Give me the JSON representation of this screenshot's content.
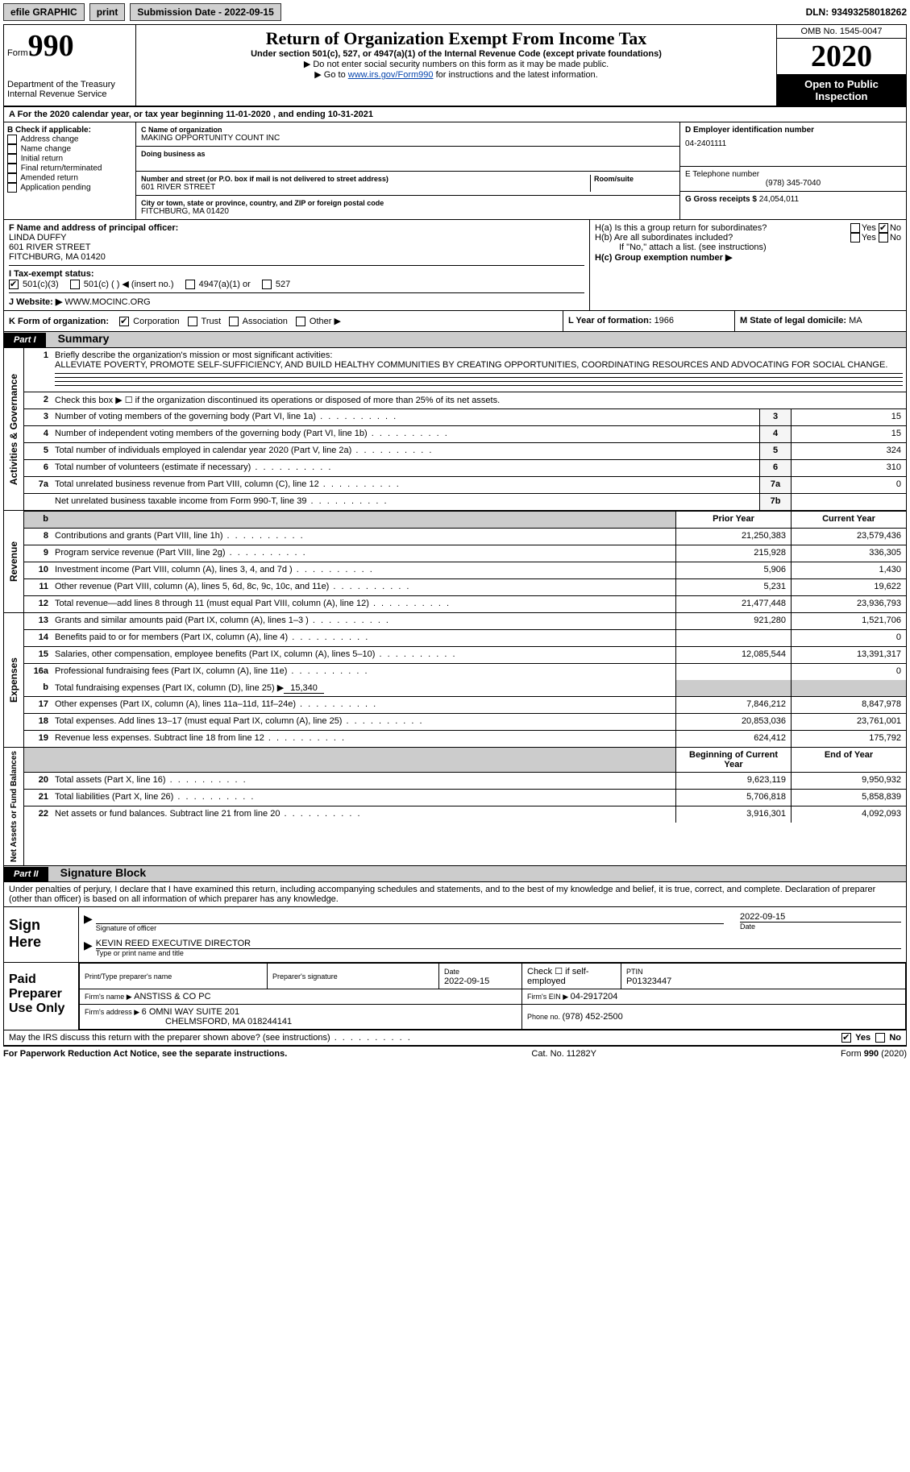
{
  "topbar": {
    "efile": "efile GRAPHIC",
    "print": "print",
    "submission_label": "Submission Date - ",
    "submission_date": "2022-09-15",
    "dln_label": "DLN: ",
    "dln": "93493258018262"
  },
  "header": {
    "form_word": "Form",
    "form_num": "990",
    "dept1": "Department of the Treasury",
    "dept2": "Internal Revenue Service",
    "title": "Return of Organization Exempt From Income Tax",
    "subtitle": "Under section 501(c), 527, or 4947(a)(1) of the Internal Revenue Code (except private foundations)",
    "note1": "▶ Do not enter social security numbers on this form as it may be made public.",
    "note2a": "▶ Go to ",
    "note2_link": "www.irs.gov/Form990",
    "note2b": " for instructions and the latest information.",
    "omb": "OMB No. 1545-0047",
    "year": "2020",
    "open_public": "Open to Public Inspection"
  },
  "line_a": {
    "prefix": "A For the 2020 calendar year, or tax year beginning ",
    "begin": "11-01-2020",
    "mid": "   , and ending ",
    "end": "10-31-2021"
  },
  "block_b": {
    "title": "B Check if applicable:",
    "items": [
      "Address change",
      "Name change",
      "Initial return",
      "Final return/terminated",
      "Amended return",
      "Application pending"
    ]
  },
  "block_c": {
    "name_label": "C Name of organization",
    "name": "MAKING OPPORTUNITY COUNT INC",
    "dba_label": "Doing business as",
    "addr_label": "Number and street (or P.O. box if mail is not delivered to street address)",
    "room_label": "Room/suite",
    "addr": "601 RIVER STREET",
    "city_label": "City or town, state or province, country, and ZIP or foreign postal code",
    "city": "FITCHBURG, MA  01420"
  },
  "block_d": {
    "label": "D Employer identification number",
    "value": "04-2401111"
  },
  "block_e": {
    "label": "E Telephone number",
    "value": "(978) 345-7040"
  },
  "block_g": {
    "label": "G Gross receipts $ ",
    "value": "24,054,011"
  },
  "block_f": {
    "label": "F  Name and address of principal officer:",
    "name": "LINDA DUFFY",
    "addr": "601 RIVER STREET",
    "city": "FITCHBURG, MA  01420"
  },
  "block_h": {
    "a_label": "H(a)  Is this a group return for subordinates?",
    "yes": "Yes",
    "no": "No",
    "b_label": "H(b)  Are all subordinates included?",
    "b_note": "If \"No,\" attach a list. (see instructions)",
    "c_label": "H(c)  Group exemption number ▶"
  },
  "line_i": {
    "label": "I  Tax-exempt status:",
    "opts": [
      "501(c)(3)",
      "501(c) (  ) ◀ (insert no.)",
      "4947(a)(1) or",
      "527"
    ]
  },
  "line_j": {
    "label": "J  Website: ▶",
    "value": "WWW.MOCINC.ORG"
  },
  "line_k": {
    "label": "K Form of organization:",
    "opts": [
      "Corporation",
      "Trust",
      "Association",
      "Other ▶"
    ]
  },
  "line_l": {
    "label": "L Year of formation: ",
    "value": "1966"
  },
  "line_m": {
    "label": "M State of legal domicile: ",
    "value": "MA"
  },
  "part1": {
    "label": "Part I",
    "title": "Summary",
    "q1": "Briefly describe the organization's mission or most significant activities:",
    "mission": "ALLEVIATE POVERTY, PROMOTE SELF-SUFFICIENCY, AND BUILD HEALTHY COMMUNITIES BY CREATING OPPORTUNITIES, COORDINATING RESOURCES AND ADVOCATING FOR SOCIAL CHANGE.",
    "q2": "Check this box ▶ ☐  if the organization discontinued its operations or disposed of more than 25% of its net assets.",
    "governance_label": "Activities & Governance",
    "revenue_label": "Revenue",
    "expenses_label": "Expenses",
    "netassets_label": "Net Assets or Fund Balances",
    "lines_gov": [
      {
        "n": "3",
        "t": "Number of voting members of the governing body (Part VI, line 1a)",
        "i": "3",
        "v": "15"
      },
      {
        "n": "4",
        "t": "Number of independent voting members of the governing body (Part VI, line 1b)",
        "i": "4",
        "v": "15"
      },
      {
        "n": "5",
        "t": "Total number of individuals employed in calendar year 2020 (Part V, line 2a)",
        "i": "5",
        "v": "324"
      },
      {
        "n": "6",
        "t": "Total number of volunteers (estimate if necessary)",
        "i": "6",
        "v": "310"
      },
      {
        "n": "7a",
        "t": "Total unrelated business revenue from Part VIII, column (C), line 12",
        "i": "7a",
        "v": "0"
      },
      {
        "n": "",
        "t": "Net unrelated business taxable income from Form 990-T, line 39",
        "i": "7b",
        "v": ""
      }
    ],
    "col_prior": "Prior Year",
    "col_current": "Current Year",
    "col_begin": "Beginning of Current Year",
    "col_end": "End of Year",
    "lines_rev": [
      {
        "n": "8",
        "t": "Contributions and grants (Part VIII, line 1h)",
        "p": "21,250,383",
        "c": "23,579,436"
      },
      {
        "n": "9",
        "t": "Program service revenue (Part VIII, line 2g)",
        "p": "215,928",
        "c": "336,305"
      },
      {
        "n": "10",
        "t": "Investment income (Part VIII, column (A), lines 3, 4, and 7d )",
        "p": "5,906",
        "c": "1,430"
      },
      {
        "n": "11",
        "t": "Other revenue (Part VIII, column (A), lines 5, 6d, 8c, 9c, 10c, and 11e)",
        "p": "5,231",
        "c": "19,622"
      },
      {
        "n": "12",
        "t": "Total revenue—add lines 8 through 11 (must equal Part VIII, column (A), line 12)",
        "p": "21,477,448",
        "c": "23,936,793"
      }
    ],
    "lines_exp": [
      {
        "n": "13",
        "t": "Grants and similar amounts paid (Part IX, column (A), lines 1–3 )",
        "p": "921,280",
        "c": "1,521,706"
      },
      {
        "n": "14",
        "t": "Benefits paid to or for members (Part IX, column (A), line 4)",
        "p": "",
        "c": "0"
      },
      {
        "n": "15",
        "t": "Salaries, other compensation, employee benefits (Part IX, column (A), lines 5–10)",
        "p": "12,085,544",
        "c": "13,391,317"
      },
      {
        "n": "16a",
        "t": "Professional fundraising fees (Part IX, column (A), line 11e)",
        "p": "",
        "c": "0"
      }
    ],
    "line_b": {
      "n": "b",
      "t": "Total fundraising expenses (Part IX, column (D), line 25) ▶",
      "v": "15,340"
    },
    "lines_exp2": [
      {
        "n": "17",
        "t": "Other expenses (Part IX, column (A), lines 11a–11d, 11f–24e)",
        "p": "7,846,212",
        "c": "8,847,978"
      },
      {
        "n": "18",
        "t": "Total expenses. Add lines 13–17 (must equal Part IX, column (A), line 25)",
        "p": "20,853,036",
        "c": "23,761,001"
      },
      {
        "n": "19",
        "t": "Revenue less expenses. Subtract line 18 from line 12",
        "p": "624,412",
        "c": "175,792"
      }
    ],
    "lines_net": [
      {
        "n": "20",
        "t": "Total assets (Part X, line 16)",
        "p": "9,623,119",
        "c": "9,950,932"
      },
      {
        "n": "21",
        "t": "Total liabilities (Part X, line 26)",
        "p": "5,706,818",
        "c": "5,858,839"
      },
      {
        "n": "22",
        "t": "Net assets or fund balances. Subtract line 21 from line 20",
        "p": "3,916,301",
        "c": "4,092,093"
      }
    ]
  },
  "part2": {
    "label": "Part II",
    "title": "Signature Block",
    "penalties": "Under penalties of perjury, I declare that I have examined this return, including accompanying schedules and statements, and to the best of my knowledge and belief, it is true, correct, and complete. Declaration of preparer (other than officer) is based on all information of which preparer has any knowledge.",
    "sign_here": "Sign Here",
    "sig_officer": "Signature of officer",
    "date_label": "Date",
    "sig_date": "2022-09-15",
    "officer_name": "KEVIN REED  EXECUTIVE DIRECTOR",
    "type_name": "Type or print name and title",
    "paid_prep": "Paid Preparer Use Only",
    "print_name": "Print/Type preparer's name",
    "prep_sig": "Preparer's signature",
    "prep_date_label": "Date",
    "prep_date": "2022-09-15",
    "check_if": "Check ☐  if self-employed",
    "ptin_label": "PTIN",
    "ptin": "P01323447",
    "firm_name_label": "Firm's name    ▶ ",
    "firm_name": "ANSTISS & CO PC",
    "firm_ein_label": "Firm's EIN ▶ ",
    "firm_ein": "04-2917204",
    "firm_addr_label": "Firm's address ▶ ",
    "firm_addr1": "6 OMNI WAY SUITE 201",
    "firm_addr2": "CHELMSFORD, MA  018244141",
    "phone_label": "Phone no. ",
    "phone": "(978) 452-2500",
    "may_irs": "May the IRS discuss this return with the preparer shown above? (see instructions)"
  },
  "footer": {
    "left": "For Paperwork Reduction Act Notice, see the separate instructions.",
    "mid": "Cat. No. 11282Y",
    "right": "Form 990 (2020)"
  }
}
